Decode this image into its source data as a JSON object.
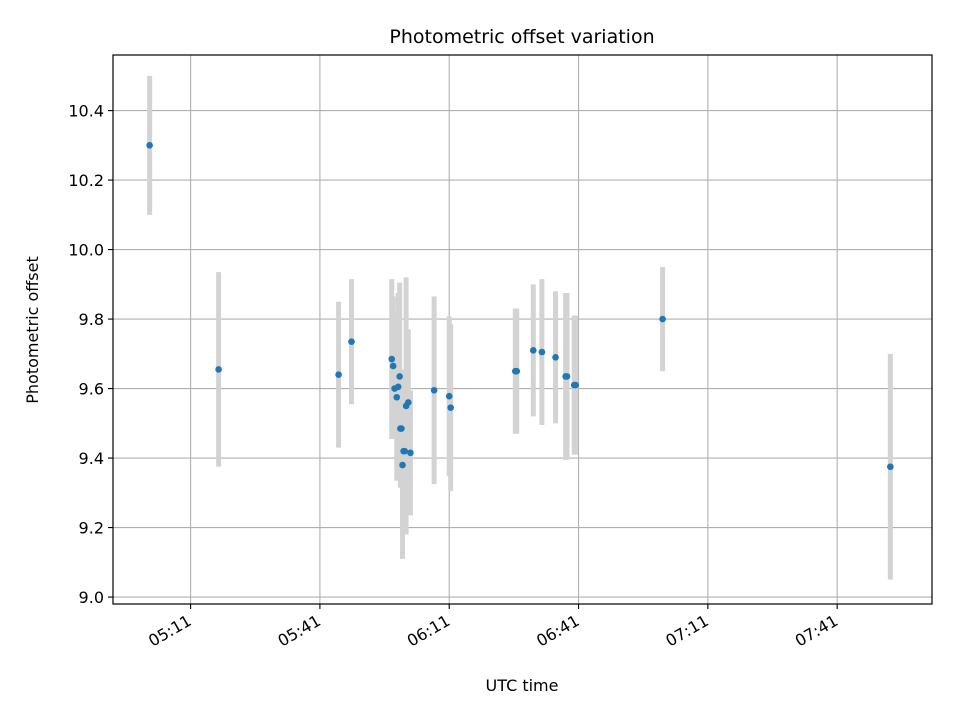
{
  "chart_data": {
    "type": "scatter",
    "title": "Photometric offset variation",
    "xlabel": "UTC time",
    "ylabel": "Photometric offset",
    "x_format": "HH:MM",
    "xlim": [
      "04:53",
      "08:03"
    ],
    "ylim": [
      8.98,
      10.56
    ],
    "grid": true,
    "xticks": [
      "05:11",
      "05:41",
      "06:11",
      "06:41",
      "07:11",
      "07:41"
    ],
    "yticks": [
      9.0,
      9.2,
      9.4,
      9.6,
      9.8,
      10.0,
      10.2,
      10.4
    ],
    "ytick_labels": [
      "9.0",
      "9.2",
      "9.4",
      "9.6",
      "9.8",
      "10.0",
      "10.2",
      "10.4"
    ],
    "colors": {
      "marker": "#1f77b4",
      "errorbar": "#d3d3d3",
      "grid": "#b0b0b0"
    },
    "points": [
      {
        "x": "05:01:30",
        "y": 10.3,
        "err": 0.2
      },
      {
        "x": "05:17:30",
        "y": 9.655,
        "err": 0.28
      },
      {
        "x": "05:45:20",
        "y": 9.64,
        "err": 0.21
      },
      {
        "x": "05:48:20",
        "y": 9.735,
        "err": 0.18
      },
      {
        "x": "05:57:40",
        "y": 9.685,
        "err": 0.23
      },
      {
        "x": "05:58:00",
        "y": 9.665,
        "err": 0.2
      },
      {
        "x": "05:58:20",
        "y": 9.6,
        "err": 0.14
      },
      {
        "x": "05:58:50",
        "y": 9.575,
        "err": 0.24
      },
      {
        "x": "05:59:10",
        "y": 9.605,
        "err": 0.27
      },
      {
        "x": "05:59:30",
        "y": 9.635,
        "err": 0.27
      },
      {
        "x": "05:59:40",
        "y": 9.485,
        "err": 0.17
      },
      {
        "x": "05:59:55",
        "y": 9.485,
        "err": 0.17
      },
      {
        "x": "06:00:10",
        "y": 9.38,
        "err": 0.27
      },
      {
        "x": "06:00:25",
        "y": 9.42,
        "err": 0.12
      },
      {
        "x": "06:00:40",
        "y": 9.42,
        "err": 0.12
      },
      {
        "x": "06:01:00",
        "y": 9.55,
        "err": 0.37
      },
      {
        "x": "06:01:30",
        "y": 9.56,
        "err": 0.21
      },
      {
        "x": "06:02:00",
        "y": 9.415,
        "err": 0.18
      },
      {
        "x": "06:07:30",
        "y": 9.595,
        "err": 0.27
      },
      {
        "x": "06:11:00",
        "y": 9.578,
        "err": 0.23
      },
      {
        "x": "06:11:20",
        "y": 9.545,
        "err": 0.24
      },
      {
        "x": "06:26:20",
        "y": 9.65,
        "err": 0.18
      },
      {
        "x": "06:26:40",
        "y": 9.65,
        "err": 0.18
      },
      {
        "x": "06:30:30",
        "y": 9.71,
        "err": 0.19
      },
      {
        "x": "06:32:30",
        "y": 9.705,
        "err": 0.21
      },
      {
        "x": "06:35:40",
        "y": 9.69,
        "err": 0.19
      },
      {
        "x": "06:38:00",
        "y": 9.635,
        "err": 0.24
      },
      {
        "x": "06:38:20",
        "y": 9.635,
        "err": 0.24
      },
      {
        "x": "06:40:00",
        "y": 9.61,
        "err": 0.2
      },
      {
        "x": "06:40:20",
        "y": 9.61,
        "err": 0.2
      },
      {
        "x": "07:00:30",
        "y": 9.8,
        "err": 0.15
      },
      {
        "x": "07:53:20",
        "y": 9.375,
        "err": 0.325
      }
    ]
  }
}
